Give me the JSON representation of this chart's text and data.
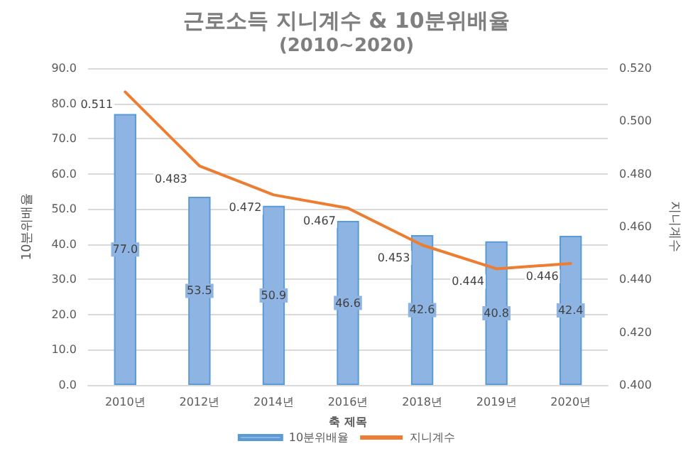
{
  "chart_data": {
    "type": "bar",
    "title": "근로소득 지니계수 & 10분위배율",
    "subtitle": "(2010~2020)",
    "categories": [
      "2010년",
      "2012년",
      "2014년",
      "2016년",
      "2018년",
      "2019년",
      "2020년"
    ],
    "xlabel": "축 제목",
    "ylabel": "10분위배율",
    "y2label": "지니계수",
    "series": [
      {
        "name": "10분위배율",
        "type": "bar",
        "color": "#8db4e2",
        "values": [
          77.0,
          53.5,
          50.9,
          46.6,
          42.6,
          40.8,
          42.4
        ],
        "value_labels": [
          "77.0",
          "53.5",
          "50.9",
          "46.6",
          "42.6",
          "40.8",
          "42.4"
        ]
      },
      {
        "name": "지니계수",
        "type": "line",
        "axis": "y2",
        "color": "#ed7d31",
        "marker": "none",
        "values": [
          0.511,
          0.483,
          0.472,
          0.467,
          0.453,
          0.444,
          0.446
        ],
        "value_labels": [
          "0.511",
          "0.483",
          "0.472",
          "0.467",
          "0.453",
          "0.444",
          "0.446"
        ]
      }
    ],
    "ylim": [
      0,
      90
    ],
    "yticks": [
      {
        "value": 0,
        "label": "0.0"
      },
      {
        "value": 10,
        "label": "10.0"
      },
      {
        "value": 20,
        "label": "20.0"
      },
      {
        "value": 30,
        "label": "30.0"
      },
      {
        "value": 40,
        "label": "40.0"
      },
      {
        "value": 50,
        "label": "50.0"
      },
      {
        "value": 60,
        "label": "60.0"
      },
      {
        "value": 70,
        "label": "70.0"
      },
      {
        "value": 80,
        "label": "80.0"
      },
      {
        "value": 90,
        "label": "90.0"
      }
    ],
    "y2lim": [
      0.4,
      0.52
    ],
    "y2ticks": [
      {
        "value": 0.4,
        "label": "0.400"
      },
      {
        "value": 0.42,
        "label": "0.420"
      },
      {
        "value": 0.44,
        "label": "0.440"
      },
      {
        "value": 0.46,
        "label": "0.460"
      },
      {
        "value": 0.48,
        "label": "0.480"
      },
      {
        "value": 0.5,
        "label": "0.500"
      },
      {
        "value": 0.52,
        "label": "0.520"
      }
    ],
    "grid": "y",
    "legend": "bottom"
  }
}
